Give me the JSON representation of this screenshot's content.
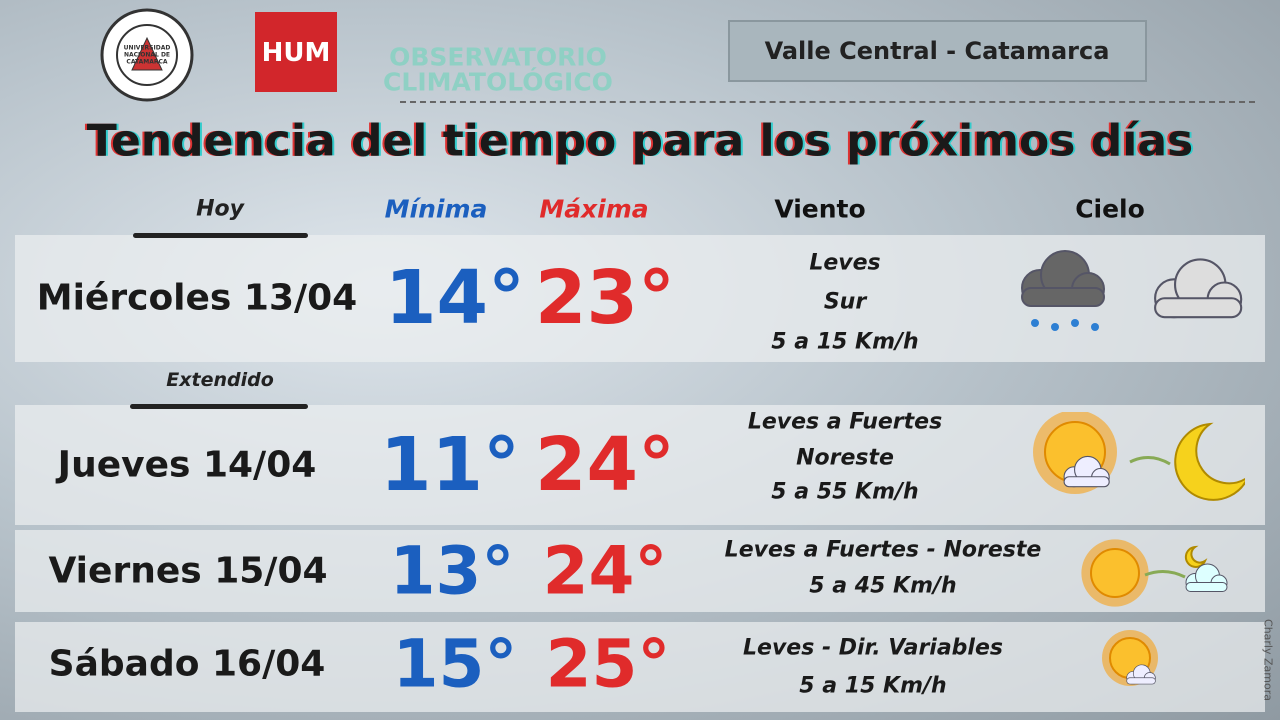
{
  "header": {
    "logo_university": "UNIVERSIDAD NACIONAL DE CATAMARCA",
    "logo_hum": "HUM",
    "logo_observatory": [
      "OBSERVATORIO",
      "CLIMATOLÓGICO"
    ],
    "region": "Valle Central - Catamarca"
  },
  "title": "Tendencia del tiempo para los próximos días",
  "columns": {
    "today": "Hoy",
    "min": "Mínima",
    "max": "Máxima",
    "wind": "Viento",
    "sky": "Cielo"
  },
  "extended_label": "Extendido",
  "days": [
    {
      "day": "Miércoles 13/04",
      "min": "14°",
      "max": "23°",
      "wind": [
        "Leves",
        "Sur",
        "5 a 15 Km/h"
      ]
    },
    {
      "day": "Jueves 14/04",
      "min": "11°",
      "max": "24°",
      "wind": [
        "Leves a Fuertes",
        "Noreste",
        "5 a 55 Km/h"
      ]
    },
    {
      "day": "Viernes 15/04",
      "min": "13°",
      "max": "24°",
      "wind": [
        "Leves a Fuertes - Noreste",
        "5 a 45 Km/h"
      ]
    },
    {
      "day": "Sábado 16/04",
      "min": "15°",
      "max": "25°",
      "wind": [
        "Leves - Dir. Variables",
        "5 a 15 Km/h"
      ]
    }
  ],
  "credit": "Charly Zamora"
}
